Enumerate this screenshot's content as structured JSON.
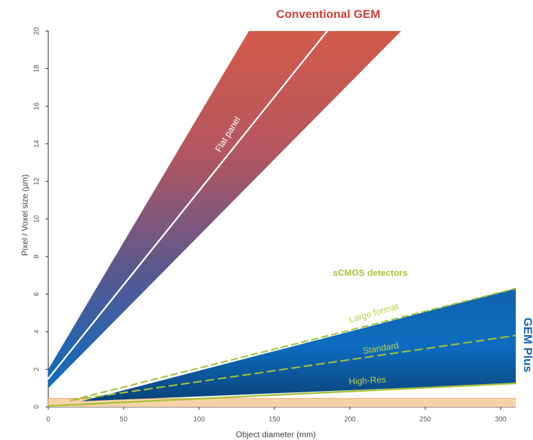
{
  "chart_data": {
    "type": "area",
    "title": "",
    "xlabel": "Object diameter (mm)",
    "ylabel": "Pixel / Voxel size (µm)",
    "xlim": [
      0,
      310
    ],
    "ylim": [
      0,
      20
    ],
    "x_ticks": [
      0,
      50,
      100,
      150,
      200,
      250,
      300
    ],
    "y_ticks": [
      0,
      2,
      4,
      6,
      8,
      10,
      12,
      14,
      16,
      18,
      20
    ],
    "grid": false,
    "series": [
      {
        "name": "Conventional GEM",
        "color": "#c8413a",
        "lower": {
          "x": [
            0,
            234
          ],
          "y": [
            1.0,
            20
          ]
        },
        "upper": {
          "x": [
            0,
            133
          ],
          "y": [
            2.0,
            20
          ]
        }
      },
      {
        "name": "GEM Plus",
        "color": "#1464b0",
        "lower": {
          "x": [
            22,
            310
          ],
          "y": [
            0.3,
            1.25
          ]
        },
        "upper": {
          "x": [
            22,
            310
          ],
          "y": [
            0.3,
            6.3
          ]
        }
      }
    ],
    "lines": [
      {
        "name": "Flat panel",
        "x": [
          0,
          185
        ],
        "y": [
          1.5,
          20
        ],
        "color": "#ffffff"
      },
      {
        "name": "Large format",
        "x": [
          15,
          310
        ],
        "y": [
          0.35,
          6.3
        ],
        "color": "#a6c23a"
      },
      {
        "name": "Standard",
        "x": [
          15,
          310
        ],
        "y": [
          0.35,
          3.8
        ],
        "color": "#a6c23a"
      },
      {
        "name": "High-Res",
        "x": [
          0,
          310
        ],
        "y": [
          0.05,
          1.25
        ],
        "color": "#a6c23a"
      }
    ],
    "band": {
      "y": [
        0,
        0.45
      ],
      "color": "#f7d2a8"
    },
    "annotations": {
      "conventional": "Conventional GEM",
      "flat_panel": "Flat panel",
      "scmos": "sCMOS detectors",
      "large_format": "Large format",
      "standard": "Standard",
      "high_res": "High-Res",
      "gem_plus": "GEM Plus"
    }
  },
  "colors": {
    "conventional": "#c8413a",
    "gem_plus": "#1464b0",
    "scmos": "#a6c23a"
  }
}
